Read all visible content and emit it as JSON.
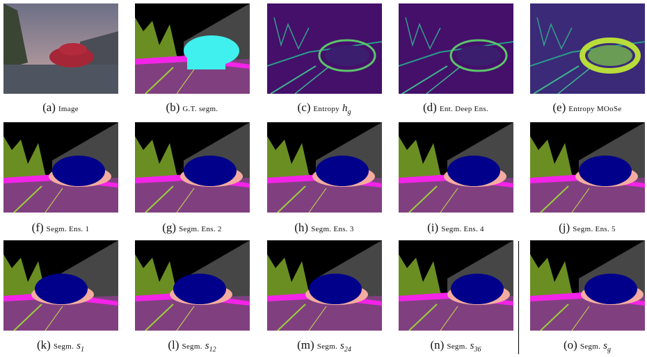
{
  "panels": [
    {
      "letter": "(a)",
      "caption": "Image"
    },
    {
      "letter": "(b)",
      "caption": "G.T. segm."
    },
    {
      "letter": "(c)",
      "caption": "Entropy",
      "math": "h",
      "sub": "g"
    },
    {
      "letter": "(d)",
      "caption": "Ent. Deep Ens."
    },
    {
      "letter": "(e)",
      "caption": "Entropy MOoSe"
    },
    {
      "letter": "(f)",
      "caption": "Segm. Ens. 1"
    },
    {
      "letter": "(g)",
      "caption": "Segm. Ens. 2"
    },
    {
      "letter": "(h)",
      "caption": "Segm. Ens. 3"
    },
    {
      "letter": "(i)",
      "caption": "Segm. Ens. 4"
    },
    {
      "letter": "(j)",
      "caption": "Segm. Ens. 5"
    },
    {
      "letter": "(k)",
      "caption": "Segm.",
      "math": "s",
      "sub": "1"
    },
    {
      "letter": "(l)",
      "caption": "Segm.",
      "math": "s",
      "sub": "12"
    },
    {
      "letter": "(m)",
      "caption": "Segm.",
      "math": "s",
      "sub": "24"
    },
    {
      "letter": "(n)",
      "caption": "Segm.",
      "math": "s",
      "sub": "36"
    },
    {
      "letter": "(o)",
      "caption": "Segm.",
      "math": "s",
      "sub": "g"
    }
  ]
}
